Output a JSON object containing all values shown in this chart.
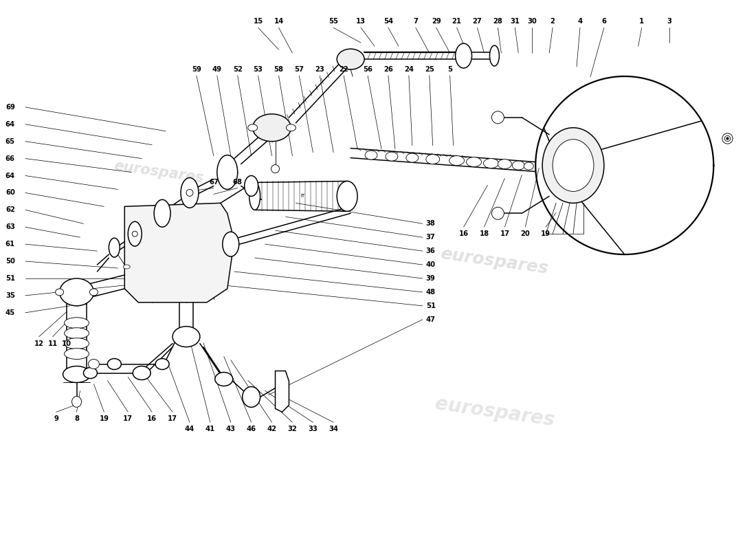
{
  "bg_color": "#ffffff",
  "line_color": "#000000",
  "label_fontsize": 7.2,
  "watermark_text": "eurospares",
  "fig_width": 11.0,
  "fig_height": 8.0,
  "lw_main": 1.1,
  "lw_thin": 0.65,
  "lw_thick": 1.6
}
